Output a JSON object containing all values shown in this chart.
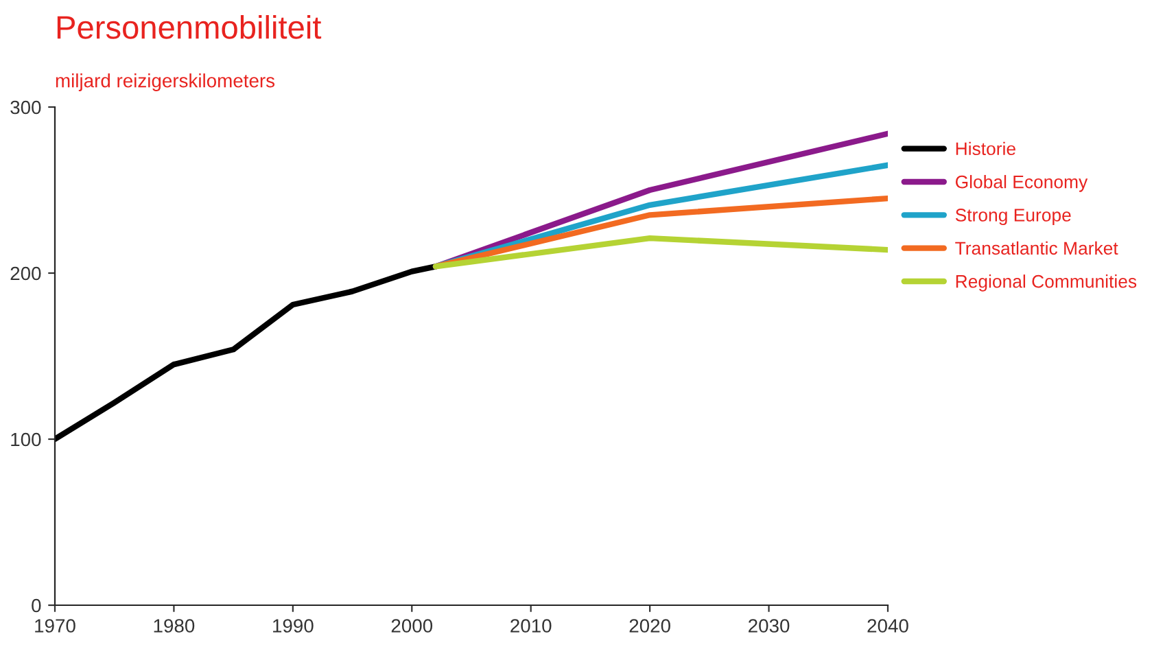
{
  "chart_data": {
    "type": "line",
    "title": "Personenmobiliteit",
    "subtitle": "miljard reizigerskilometers",
    "xlim": [
      1970,
      2040
    ],
    "xticks": [
      1970,
      1980,
      1990,
      2000,
      2010,
      2020,
      2030,
      2040
    ],
    "ylim": [
      0,
      300
    ],
    "yticks": [
      0,
      100,
      200,
      300
    ],
    "grid": false,
    "legend": "right",
    "marker": "none",
    "line_style": "solid",
    "series": [
      {
        "name": "Historie",
        "color": "#000000",
        "x": [
          1970,
          1975,
          1980,
          1985,
          1990,
          1995,
          2000,
          2002
        ],
        "values": [
          100,
          122,
          145,
          154,
          181,
          189,
          201,
          204
        ]
      },
      {
        "name": "Global Economy",
        "color": "#8b1a8b",
        "x": [
          2002,
          2020,
          2040
        ],
        "values": [
          204,
          250,
          284
        ]
      },
      {
        "name": "Strong Europe",
        "color": "#1fa3c9",
        "x": [
          2002,
          2020,
          2040
        ],
        "values": [
          204,
          241,
          265
        ]
      },
      {
        "name": "Transatlantic Market",
        "color": "#f26a21",
        "x": [
          2002,
          2020,
          2040
        ],
        "values": [
          204,
          235,
          245
        ]
      },
      {
        "name": "Regional Communities",
        "color": "#b5d334",
        "x": [
          2002,
          2020,
          2040
        ],
        "values": [
          204,
          221,
          214
        ]
      }
    ]
  }
}
